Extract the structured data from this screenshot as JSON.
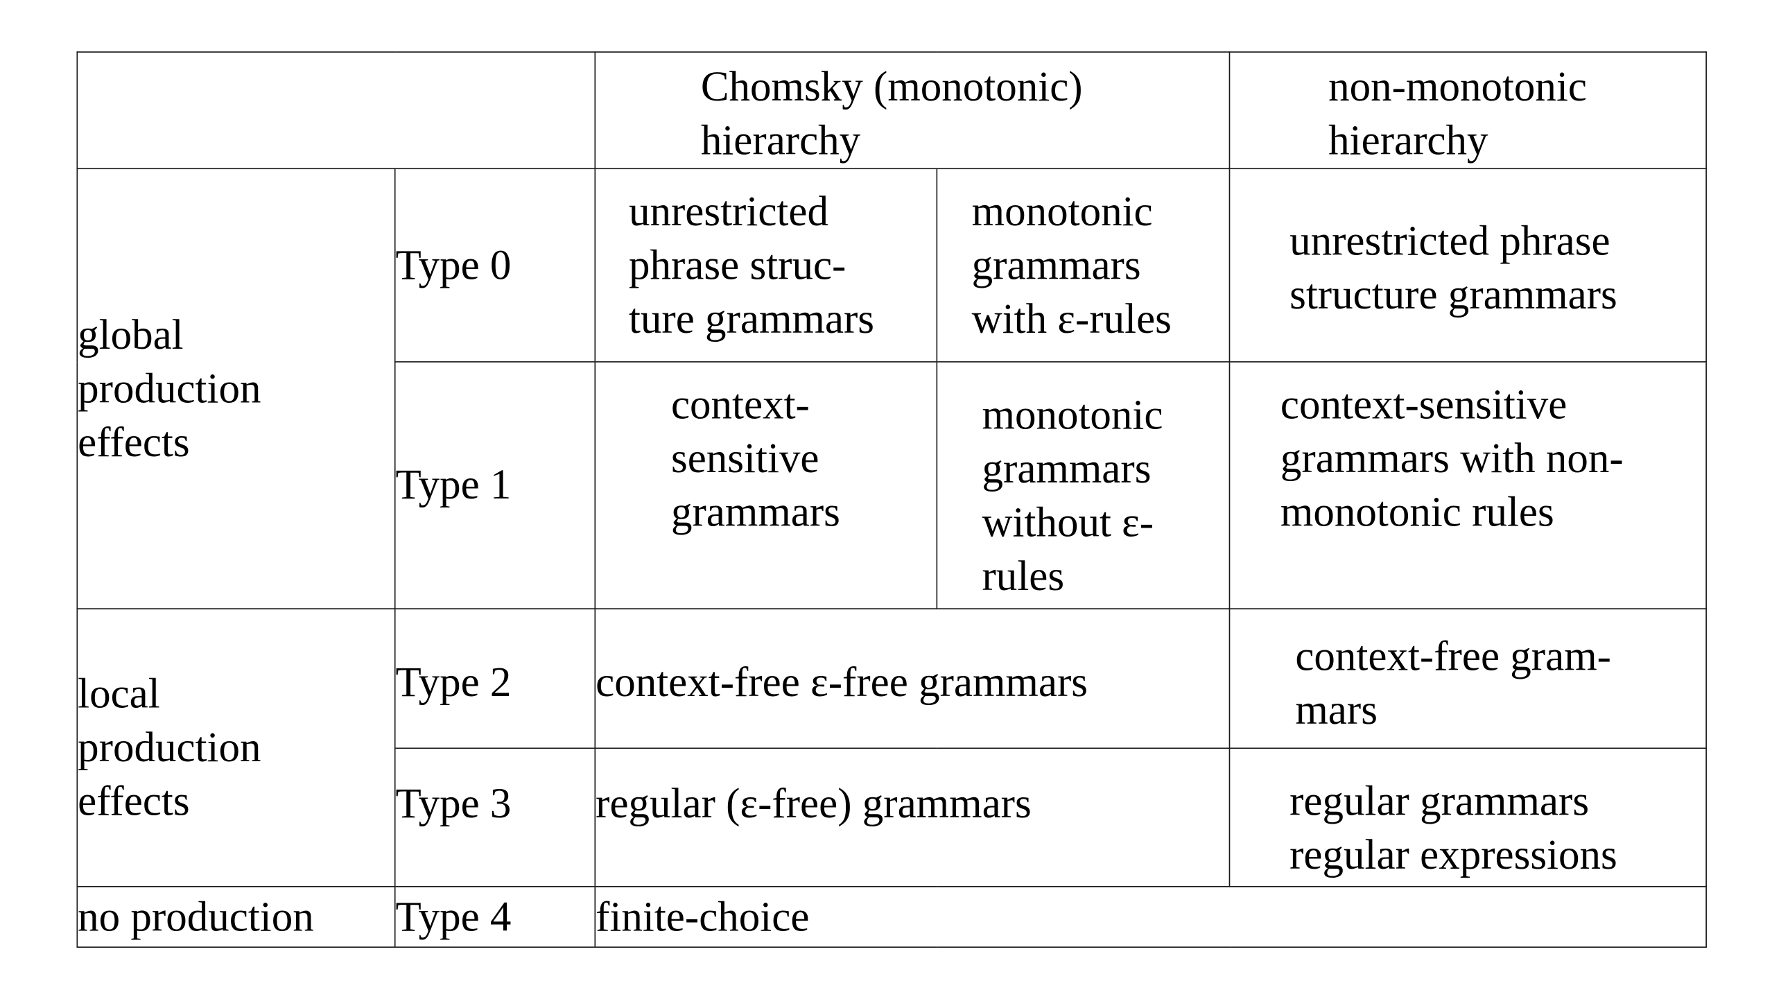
{
  "table": {
    "header": {
      "chomsky": [
        "Chomsky (monotonic)",
        "hierarchy"
      ],
      "nonmono": [
        "non-monotonic",
        "hierarchy"
      ]
    },
    "groups": {
      "global": [
        "global",
        "production",
        "effects"
      ],
      "local": [
        "local",
        "production",
        "effects"
      ],
      "none": "no production"
    },
    "types": {
      "t0": "Type 0",
      "t1": "Type 1",
      "t2": "Type 2",
      "t3": "Type 3",
      "t4": "Type 4"
    },
    "type0": {
      "a": [
        "unrestricted",
        "phrase struc-",
        "ture grammars"
      ],
      "b": [
        "monotonic",
        "grammars",
        "with ε-rules"
      ],
      "c": [
        "unrestricted phrase",
        "structure grammars"
      ]
    },
    "type1": {
      "a": [
        "context-",
        "sensitive",
        "grammars"
      ],
      "b": [
        "monotonic",
        "grammars",
        "without ε-",
        "rules"
      ],
      "c": [
        "context-sensitive",
        "grammars with non-",
        "monotonic rules"
      ]
    },
    "type2": {
      "ab": "context-free ε-free grammars",
      "c": [
        "context-free gram-",
        "mars"
      ]
    },
    "type3": {
      "ab": "regular (ε-free) grammars",
      "c": [
        "regular grammars",
        "regular expressions"
      ]
    },
    "type4": {
      "all": "finite-choice"
    }
  }
}
